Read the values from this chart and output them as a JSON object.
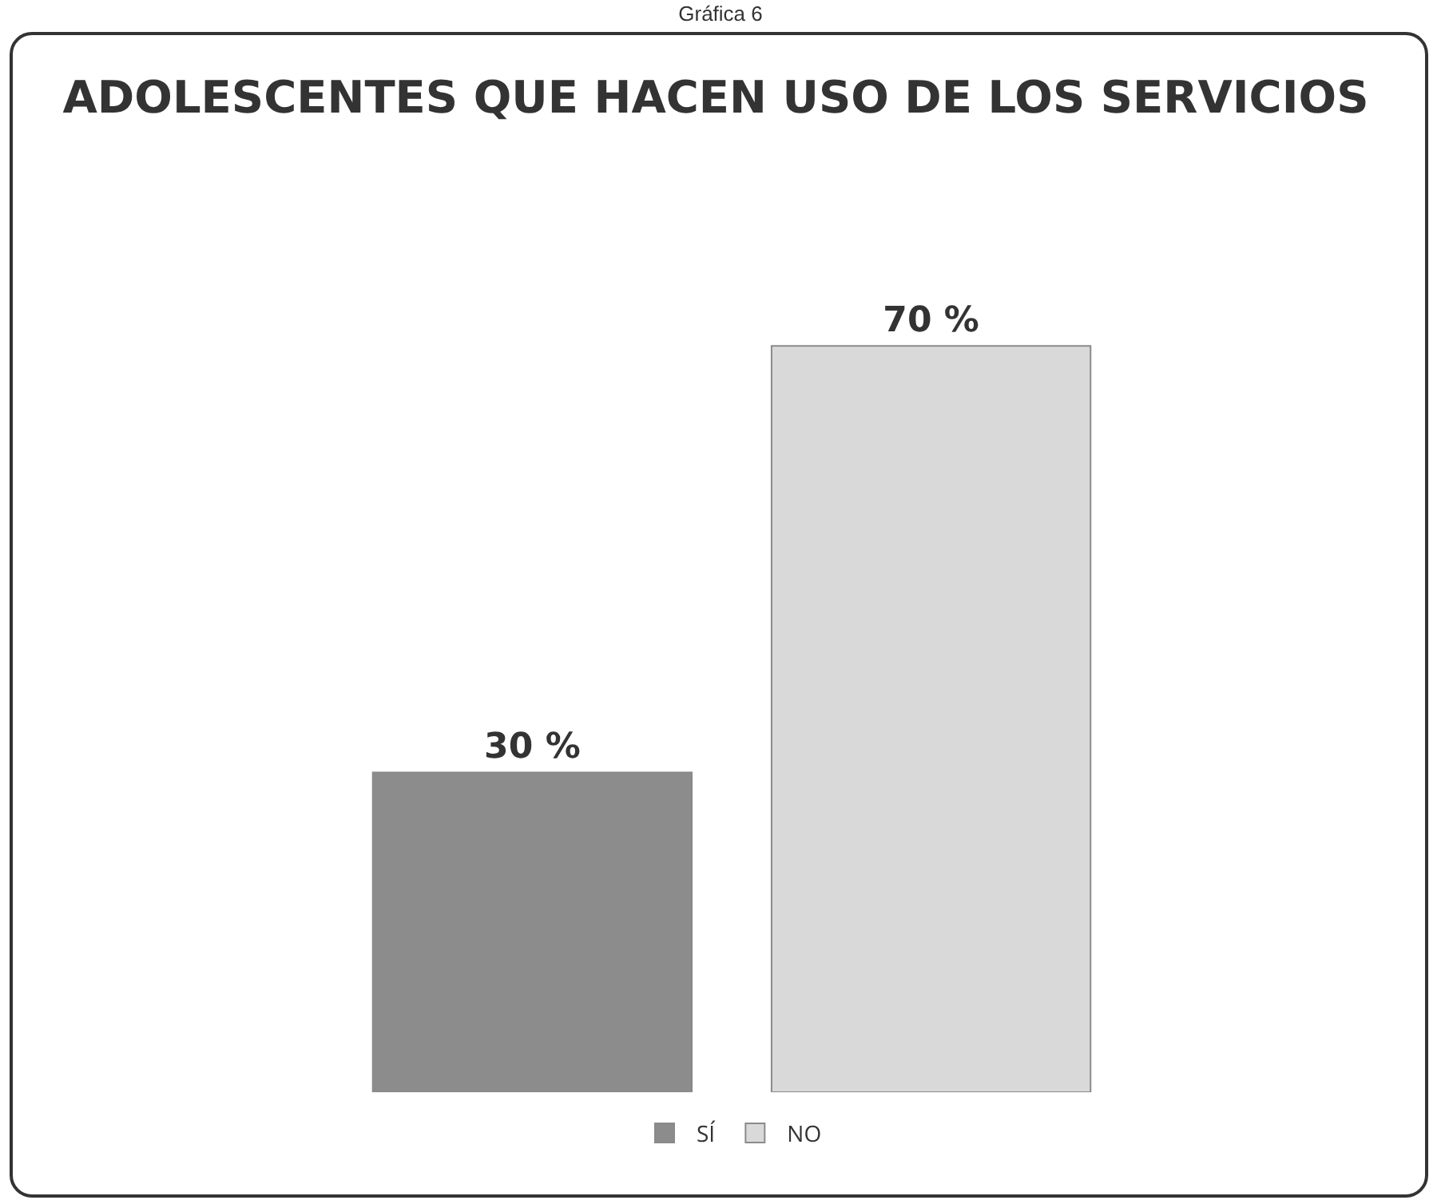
{
  "chart_data": {
    "type": "bar",
    "title": "ADOLESCENTES QUE HACEN USO DE LOS SERVICIOS",
    "annotations": [
      "Gráfica 6"
    ],
    "categories": [
      null
    ],
    "series": [
      {
        "name": "SÍ",
        "color": "#8c8c8c",
        "values": [
          30
        ],
        "value_labels": [
          "30 %"
        ]
      },
      {
        "name": "NO",
        "color": "#d9d9d9",
        "values": [
          70
        ],
        "value_labels": [
          "70 %"
        ]
      }
    ],
    "legend": "bottom",
    "grid": false,
    "tick_labels": false
  }
}
